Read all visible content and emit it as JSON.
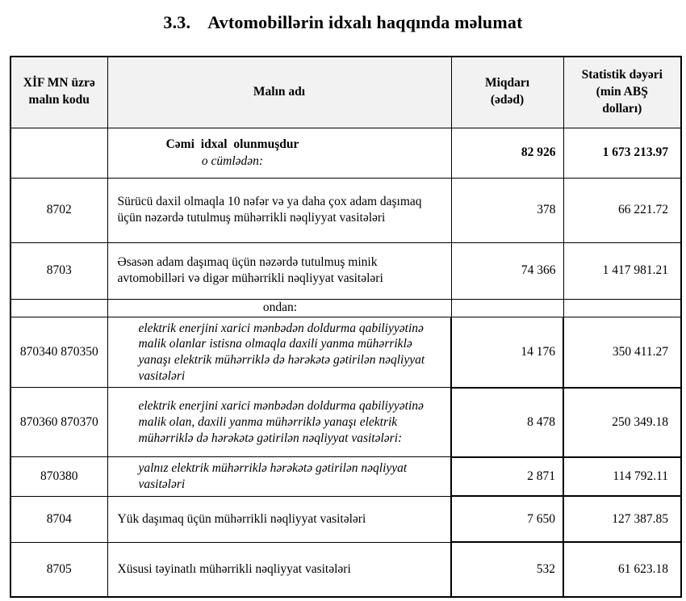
{
  "title": {
    "number": "3.3.",
    "text": "Avtomobillərin idxalı haqqında məlumat"
  },
  "table": {
    "columns": [
      "XİF MN üzrə\nmalın kodu",
      "Malın adı",
      "Miqdarı\n(ədəd)",
      "Statistik dəyəri\n(min ABŞ\ndolları)"
    ],
    "rows": [
      {
        "code": "",
        "name": "Cəmi idxal olunmuşdur",
        "sub": "o cümlədən:",
        "qty": "82 926",
        "value": "1 673 213.97",
        "style": {
          "bold": true,
          "center": true,
          "total": true,
          "numbold": true
        }
      },
      {
        "code": "8702",
        "name": "Sürücü daxil olmaqla 10 nəfər və ya daha çox adam daşımaq üçün nəzərdə tutulmuş mühərrikli nəqliyyat vasitələri",
        "qty": "378",
        "value": "66 221.72",
        "style": {}
      },
      {
        "code": "8703",
        "name": "Əsasən adam daşımaq üçün nəzərdə tutulmuş minik avtomobilləri və digər mühərrikli nəqliyyat vasitələri",
        "qty": "74 366",
        "value": "1 417 981.21",
        "style": {}
      },
      {
        "code": "",
        "name": "ondan:",
        "qty": "",
        "value": "",
        "style": {
          "center": true
        }
      },
      {
        "code": "870340 870350",
        "name": "elektrik enerjini xarici mənbədən doldurma qabiliyyətinə malik olanlar istisna olmaqla daxili yanma mühərriklə yanaşı elektrik mühərriklə də hərəkətə gətirilən nəqliyyat vasitələri",
        "qty": "14 176",
        "value": "350 411.27",
        "style": {
          "italic": true,
          "indent": true
        }
      },
      {
        "code": "870360 870370",
        "name": "elektrik enerjini xarici mənbədən doldurma qabiliyyətinə malik olan, daxili yanma mühərriklə yanaşı elektrik mühərriklə də hərəkətə gətirilən nəqliyyat vasitələri:",
        "qty": "8 478",
        "value": "250 349.18",
        "style": {
          "italic": true,
          "indent": true
        }
      },
      {
        "code": "870380",
        "name": "yalnız elektrik mühərriklə hərəkətə gətirilən nəqliyyat vasitələri",
        "qty": "2 871",
        "value": "114 792.11",
        "style": {
          "italic": true,
          "indent": true
        }
      },
      {
        "code": "8704",
        "name": "Yük daşımaq üçün mühərrikli nəqliyyat vasitələri",
        "qty": "7 650",
        "value": "127 387.85",
        "style": {}
      },
      {
        "code": "8705",
        "name": "Xüsusi təyinatlı mühərrikli nəqliyyat vasitələri",
        "qty": "532",
        "value": "61 623.18",
        "style": {}
      }
    ],
    "colors": {
      "header_bg": "#f2f2f2",
      "border": "#000000",
      "text": "#000000",
      "page_bg": "#ffffff"
    }
  }
}
